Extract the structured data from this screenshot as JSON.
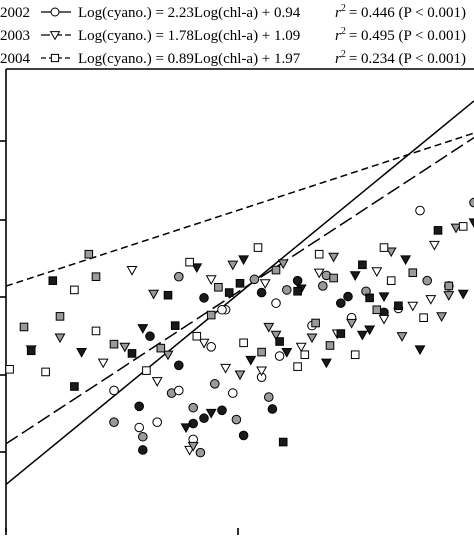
{
  "chart_data": {
    "type": "scatter",
    "title": "",
    "xlabel": "",
    "ylabel": "",
    "xscale": "log10",
    "yscale": "log10",
    "xlim": [
      -0.35,
      0.95
    ],
    "ylim": [
      -0.2,
      3.3
    ],
    "grid": false,
    "legend_placement": "top",
    "series": [
      {
        "year_label": "2002",
        "marker": "circle",
        "line_style": "solid",
        "equation": "Log(cyano.) = 2.23Log(chl-a) + 0.94",
        "r2_text": "= 0.446 (P < 0.001)",
        "slope": 2.23,
        "intercept": 0.94,
        "points": [
          [
            -0.05,
            0.87
          ],
          [
            -0.05,
            0.63
          ],
          [
            0.02,
            0.75
          ],
          [
            0.02,
            0.59
          ],
          [
            0.03,
            0.52
          ],
          [
            0.03,
            0.42
          ],
          [
            0.07,
            0.63
          ],
          [
            0.11,
            0.85
          ],
          [
            0.13,
            1.06
          ],
          [
            0.13,
            0.87
          ],
          [
            0.17,
            0.74
          ],
          [
            0.17,
            0.62
          ],
          [
            0.17,
            0.5
          ],
          [
            0.19,
            0.4
          ],
          [
            0.2,
            0.66
          ],
          [
            0.22,
            1.2
          ],
          [
            0.23,
            0.92
          ],
          [
            0.25,
            0.72
          ],
          [
            0.28,
            0.85
          ],
          [
            0.29,
            0.65
          ],
          [
            0.31,
            0.53
          ],
          [
            0.36,
            0.97
          ],
          [
            0.38,
            0.82
          ],
          [
            0.39,
            0.73
          ],
          [
            0.41,
            1.13
          ],
          [
            0.13,
            1.73
          ],
          [
            0.2,
            1.57
          ],
          [
            0.26,
            1.48
          ],
          [
            0.34,
            1.71
          ],
          [
            0.36,
            1.61
          ],
          [
            0.4,
            1.53
          ],
          [
            0.43,
            1.63
          ],
          [
            0.46,
            1.7
          ],
          [
            0.5,
            1.36
          ],
          [
            0.54,
            1.74
          ],
          [
            0.58,
            1.53
          ],
          [
            0.61,
            1.42
          ],
          [
            0.65,
            1.62
          ],
          [
            0.7,
            1.46
          ],
          [
            0.74,
            1.49
          ],
          [
            0.82,
            1.7
          ],
          [
            0.88,
            1.66
          ],
          [
            0.8,
            2.23
          ],
          [
            0.95,
            2.29
          ],
          [
            0.05,
            1.28
          ],
          [
            0.25,
            1.48
          ],
          [
            0.53,
            1.66
          ],
          [
            0.6,
            1.58
          ]
        ]
      },
      {
        "year_label": "2003",
        "marker": "triangle-down",
        "line_style": "long-dash",
        "equation": "Log(cyano.) = 1.78Log(chl-a) + 1.09",
        "r2_text": "= 0.495 (P < 0.001)",
        "slope": 1.78,
        "intercept": 1.09,
        "points": [
          [
            -0.28,
            1.18
          ],
          [
            -0.2,
            1.27
          ],
          [
            -0.14,
            1.16
          ],
          [
            -0.08,
            1.08
          ],
          [
            -0.02,
            1.2
          ],
          [
            0.03,
            1.34
          ],
          [
            0.07,
            0.94
          ],
          [
            0.1,
            1.14
          ],
          [
            0.15,
            0.59
          ],
          [
            0.16,
            0.42
          ],
          [
            0.17,
            0.45
          ],
          [
            0.22,
            0.7
          ],
          [
            0.26,
            1.04
          ],
          [
            0.3,
            0.99
          ],
          [
            0.33,
            1.1
          ],
          [
            0.36,
            1.02
          ],
          [
            0.4,
            1.29
          ],
          [
            0.43,
            1.16
          ],
          [
            0.47,
            1.2
          ],
          [
            0.5,
            1.27
          ],
          [
            0.54,
            1.08
          ],
          [
            0.57,
            1.3
          ],
          [
            0.61,
            1.38
          ],
          [
            0.66,
            1.33
          ],
          [
            0.7,
            1.41
          ],
          [
            0.75,
            1.28
          ],
          [
            0.8,
            1.18
          ],
          [
            0.83,
            1.56
          ],
          [
            0.88,
            1.59
          ],
          [
            0.92,
            1.6
          ],
          [
            0.0,
            1.78
          ],
          [
            0.06,
            1.6
          ],
          [
            0.18,
            1.8
          ],
          [
            0.22,
            1.71
          ],
          [
            0.28,
            1.82
          ],
          [
            0.31,
            1.86
          ],
          [
            0.37,
            1.68
          ],
          [
            0.42,
            1.83
          ],
          [
            0.47,
            1.64
          ],
          [
            0.52,
            1.76
          ],
          [
            0.56,
            1.88
          ],
          [
            0.62,
            1.74
          ],
          [
            0.68,
            1.77
          ],
          [
            0.72,
            1.92
          ],
          [
            0.76,
            1.86
          ],
          [
            0.84,
            1.97
          ],
          [
            0.9,
            2.1
          ],
          [
            0.95,
            2.14
          ],
          [
            0.2,
            1.23
          ],
          [
            0.38,
            1.35
          ],
          [
            0.64,
            1.29
          ],
          [
            0.78,
            1.51
          ],
          [
            0.86,
            1.43
          ],
          [
            0.7,
            1.58
          ]
        ]
      },
      {
        "year_label": "2004",
        "marker": "square",
        "line_style": "short-dash",
        "equation": "Log(cyano.) = 0.89Log(chl-a) + 1.97",
        "r2_text": "= 0.234 (P < 0.001)",
        "slope": 0.89,
        "intercept": 1.97,
        "points": [
          [
            -0.34,
            1.03
          ],
          [
            -0.3,
            1.35
          ],
          [
            -0.28,
            1.17
          ],
          [
            -0.24,
            1.01
          ],
          [
            -0.2,
            1.43
          ],
          [
            -0.16,
            0.9
          ],
          [
            -0.1,
            1.32
          ],
          [
            -0.05,
            1.22
          ],
          [
            0.0,
            1.15
          ],
          [
            0.04,
            1.02
          ],
          [
            0.08,
            1.19
          ],
          [
            0.12,
            1.36
          ],
          [
            0.18,
            1.28
          ],
          [
            0.22,
            1.44
          ],
          [
            0.27,
            1.61
          ],
          [
            0.31,
            1.23
          ],
          [
            0.36,
            1.16
          ],
          [
            0.41,
            1.24
          ],
          [
            0.46,
            1.05
          ],
          [
            0.51,
            1.38
          ],
          [
            0.58,
            1.3
          ],
          [
            0.62,
            1.14
          ],
          [
            0.68,
            1.48
          ],
          [
            0.74,
            1.51
          ],
          [
            0.81,
            1.42
          ],
          [
            0.88,
            1.66
          ],
          [
            -0.22,
            1.7
          ],
          [
            -0.16,
            1.63
          ],
          [
            -0.12,
            1.9
          ],
          [
            0.1,
            1.59
          ],
          [
            0.16,
            1.84
          ],
          [
            0.24,
            1.65
          ],
          [
            0.3,
            1.68
          ],
          [
            0.35,
            1.95
          ],
          [
            0.4,
            1.78
          ],
          [
            0.46,
            1.62
          ],
          [
            0.52,
            1.9
          ],
          [
            0.56,
            1.72
          ],
          [
            0.64,
            1.82
          ],
          [
            0.7,
            1.95
          ],
          [
            0.78,
            1.76
          ],
          [
            0.85,
            2.08
          ],
          [
            0.92,
            2.11
          ],
          [
            -0.1,
            1.73
          ],
          [
            0.42,
            0.48
          ],
          [
            0.48,
            1.14
          ],
          [
            0.55,
            1.21
          ],
          [
            0.66,
            1.57
          ],
          [
            0.72,
            1.7
          ]
        ]
      }
    ]
  },
  "legend": {
    "r2_symbol": "r",
    "r2_exp": "2"
  },
  "colors": {
    "ink": "#000000",
    "open_fill": "#ffffff",
    "gray_fill": "#9a9a9a",
    "dark_fill": "#1a1a1a"
  }
}
